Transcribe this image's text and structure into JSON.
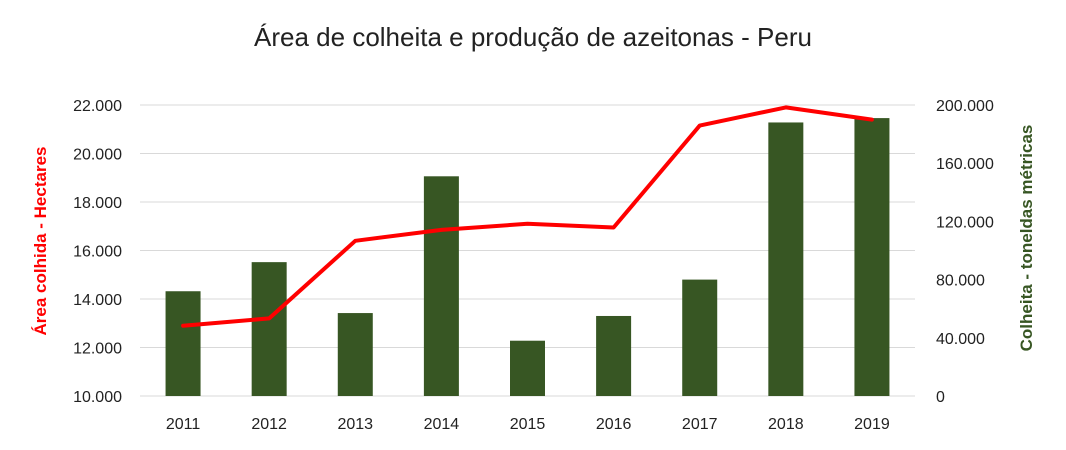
{
  "chart_data": {
    "type": "bar+line",
    "title": "Área de colheita e produção de azeitonas - Peru",
    "categories": [
      "2011",
      "2012",
      "2013",
      "2014",
      "2015",
      "2016",
      "2017",
      "2018",
      "2019"
    ],
    "series": [
      {
        "type": "bar",
        "axis": "right",
        "color": "#375623",
        "values": [
          72000,
          92000,
          57000,
          151000,
          38000,
          55000,
          80000,
          188000,
          191000
        ]
      },
      {
        "type": "line",
        "axis": "left",
        "color": "#ff0000",
        "values": [
          12900,
          13200,
          16400,
          16850,
          17100,
          16950,
          21150,
          21900,
          21400
        ]
      }
    ],
    "ylabel": "Área colhida - Hectares",
    "y2label": "Colheita -  toneldas métricas",
    "ylim": [
      10000,
      22000
    ],
    "y_ticks": [
      "10.000",
      "12.000",
      "14.000",
      "16.000",
      "18.000",
      "20.000",
      "22.000"
    ],
    "y2lim": [
      0,
      200000
    ],
    "y2_ticks": [
      "0",
      "40.000",
      "80.000",
      "120.000",
      "160.000",
      "200.000"
    ],
    "grid": true,
    "ylabel_color": "#ff0000",
    "y2label_color": "#375623"
  }
}
